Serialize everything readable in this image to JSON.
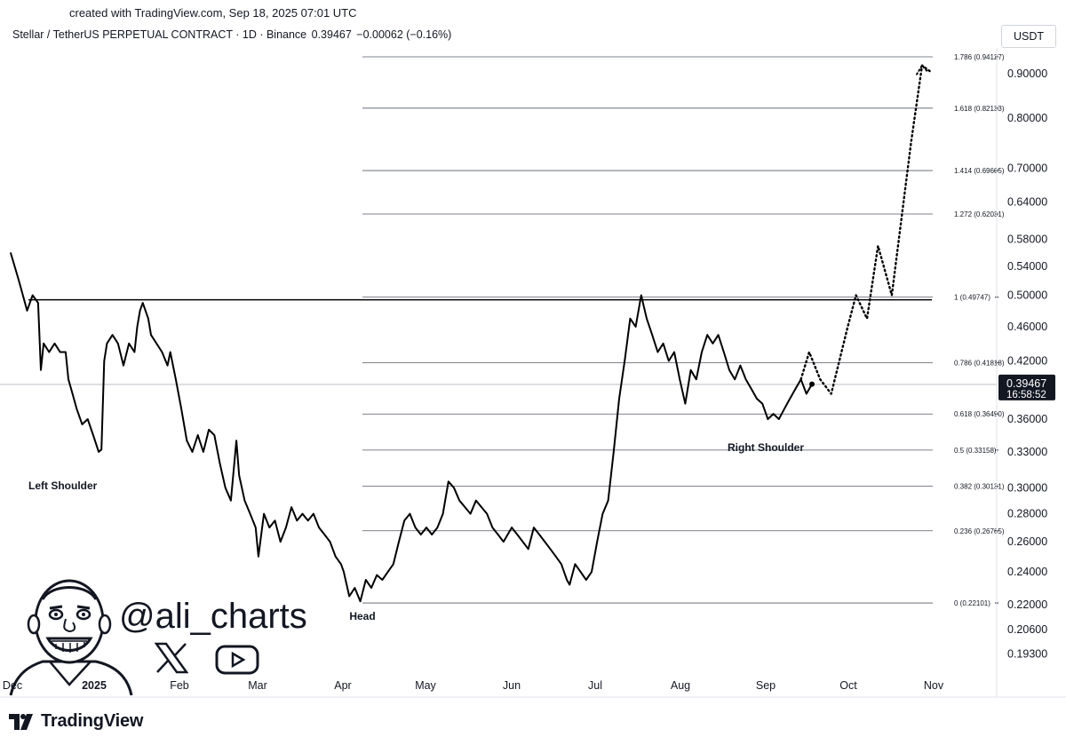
{
  "watermark": "created with TradingView.com, Sep 18, 2025 07:01 UTC",
  "header": {
    "symbol": "Stellar / TetherUS PERPETUAL CONTRACT · 1D · Binance",
    "price": "0.39467",
    "change": "−0.00062 (−0.16%)"
  },
  "currency": "USDT",
  "brand": "TradingView",
  "handle": "@ali_charts",
  "icons": {
    "social": "x-icon",
    "video": "youtube-play-icon",
    "logo": "tradingview-logo-icon",
    "avatar": "cartoon-avatar-icon"
  },
  "colors": {
    "price_line": "#000000",
    "fib_line": "#131722",
    "last_price_bg": "#131722",
    "text": "#131722"
  },
  "chart_data": {
    "type": "line",
    "scale": "log",
    "ylim": [
      0.188,
      0.95
    ],
    "y_ticks": [
      "0.90000",
      "0.80000",
      "0.70000",
      "0.64000",
      "0.58000",
      "0.54000",
      "0.50000",
      "0.46000",
      "0.42000",
      "0.36000",
      "0.33000",
      "0.30000",
      "0.28000",
      "0.26000",
      "0.24000",
      "0.22000",
      "0.20600",
      "0.19300"
    ],
    "x_ticks": [
      "Dec",
      "2025",
      "Feb",
      "Mar",
      "Apr",
      "May",
      "Jun",
      "Jul",
      "Aug",
      "Sep",
      "Oct",
      "Nov"
    ],
    "last_price": {
      "value": "0.39467",
      "countdown": "16:58:52"
    },
    "fib_levels": [
      {
        "label": "1.786 (0.94127)",
        "value": 0.94127
      },
      {
        "label": "1.618 (0.82133)",
        "value": 0.82133
      },
      {
        "label": "1.414 (0.69605)",
        "value": 0.69605
      },
      {
        "label": "1.272 (0.62031)",
        "value": 0.62031
      },
      {
        "label": "1 (0.49747)",
        "value": 0.49747
      },
      {
        "label": "0.786 (0.41818)",
        "value": 0.41818
      },
      {
        "label": "0.618 (0.36490)",
        "value": 0.3649
      },
      {
        "label": "0.5 (0.33158)",
        "value": 0.33158
      },
      {
        "label": "0.382 (0.30131)",
        "value": 0.30131
      },
      {
        "label": "0.236 (0.26765)",
        "value": 0.26765
      },
      {
        "label": "0 (0.22101)",
        "value": 0.22101
      }
    ],
    "neckline": 0.494,
    "annotations": [
      "Left Shoulder",
      "Head",
      "Right Shoulder"
    ],
    "series": [
      {
        "points": [
          [
            "Dec 1",
            0.56
          ],
          [
            "Dec 4",
            0.52
          ],
          [
            "Dec 7",
            0.48
          ],
          [
            "Dec 9",
            0.5
          ],
          [
            "Dec 11",
            0.49
          ],
          [
            "Dec 12",
            0.41
          ],
          [
            "Dec 13",
            0.44
          ],
          [
            "Dec 15",
            0.43
          ],
          [
            "Dec 17",
            0.44
          ],
          [
            "Dec 19",
            0.43
          ],
          [
            "Dec 21",
            0.43
          ],
          [
            "Dec 22",
            0.4
          ],
          [
            "Dec 23",
            0.39
          ],
          [
            "Dec 25",
            0.37
          ],
          [
            "Dec 27",
            0.355
          ],
          [
            "Dec 29",
            0.36
          ],
          [
            "Dec 31",
            0.345
          ],
          [
            "Jan 2",
            0.33
          ],
          [
            "Jan 3",
            0.332
          ],
          [
            "Jan 4",
            0.42
          ],
          [
            "Jan 5",
            0.44
          ],
          [
            "Jan 7",
            0.45
          ],
          [
            "Jan 9",
            0.44
          ],
          [
            "Jan 11",
            0.415
          ],
          [
            "Jan 13",
            0.44
          ],
          [
            "Jan 15",
            0.43
          ],
          [
            "Jan 16",
            0.46
          ],
          [
            "Jan 17",
            0.48
          ],
          [
            "Jan 18",
            0.49
          ],
          [
            "Jan 20",
            0.47
          ],
          [
            "Jan 21",
            0.45
          ],
          [
            "Jan 23",
            0.44
          ],
          [
            "Jan 25",
            0.43
          ],
          [
            "Jan 27",
            0.415
          ],
          [
            "Jan 28",
            0.43
          ],
          [
            "Jan 30",
            0.4
          ],
          [
            "Feb 1",
            0.37
          ],
          [
            "Feb 3",
            0.34
          ],
          [
            "Feb 5",
            0.33
          ],
          [
            "Feb 7",
            0.345
          ],
          [
            "Feb 9",
            0.33
          ],
          [
            "Feb 11",
            0.35
          ],
          [
            "Feb 13",
            0.345
          ],
          [
            "Feb 15",
            0.32
          ],
          [
            "Feb 17",
            0.3
          ],
          [
            "Feb 19",
            0.29
          ],
          [
            "Feb 21",
            0.34
          ],
          [
            "Feb 22",
            0.31
          ],
          [
            "Feb 24",
            0.29
          ],
          [
            "Feb 26",
            0.28
          ],
          [
            "Feb 28",
            0.27
          ],
          [
            "Mar 1",
            0.25
          ],
          [
            "Mar 3",
            0.28
          ],
          [
            "Mar 5",
            0.27
          ],
          [
            "Mar 7",
            0.275
          ],
          [
            "Mar 9",
            0.26
          ],
          [
            "Mar 11",
            0.27
          ],
          [
            "Mar 13",
            0.285
          ],
          [
            "Mar 15",
            0.275
          ],
          [
            "Mar 17",
            0.28
          ],
          [
            "Mar 19",
            0.275
          ],
          [
            "Mar 21",
            0.28
          ],
          [
            "Mar 23",
            0.27
          ],
          [
            "Mar 25",
            0.265
          ],
          [
            "Mar 27",
            0.26
          ],
          [
            "Mar 29",
            0.25
          ],
          [
            "Mar 31",
            0.245
          ],
          [
            "Apr 1",
            0.24
          ],
          [
            "Apr 3",
            0.225
          ],
          [
            "Apr 5",
            0.23
          ],
          [
            "Apr 7",
            0.222
          ],
          [
            "Apr 9",
            0.235
          ],
          [
            "Apr 11",
            0.23
          ],
          [
            "Apr 13",
            0.238
          ],
          [
            "Apr 15",
            0.235
          ],
          [
            "Apr 17",
            0.24
          ],
          [
            "Apr 19",
            0.245
          ],
          [
            "Apr 21",
            0.26
          ],
          [
            "Apr 23",
            0.275
          ],
          [
            "Apr 25",
            0.28
          ],
          [
            "Apr 27",
            0.27
          ],
          [
            "Apr 29",
            0.265
          ],
          [
            "May 1",
            0.27
          ],
          [
            "May 3",
            0.265
          ],
          [
            "May 5",
            0.27
          ],
          [
            "May 7",
            0.28
          ],
          [
            "May 9",
            0.305
          ],
          [
            "May 11",
            0.3
          ],
          [
            "May 13",
            0.29
          ],
          [
            "May 15",
            0.285
          ],
          [
            "May 17",
            0.28
          ],
          [
            "May 19",
            0.29
          ],
          [
            "May 21",
            0.285
          ],
          [
            "May 23",
            0.28
          ],
          [
            "May 25",
            0.27
          ],
          [
            "May 27",
            0.265
          ],
          [
            "May 29",
            0.26
          ],
          [
            "Jun 1",
            0.27
          ],
          [
            "Jun 3",
            0.265
          ],
          [
            "Jun 5",
            0.26
          ],
          [
            "Jun 7",
            0.255
          ],
          [
            "Jun 9",
            0.27
          ],
          [
            "Jun 11",
            0.265
          ],
          [
            "Jun 13",
            0.26
          ],
          [
            "Jun 15",
            0.255
          ],
          [
            "Jun 17",
            0.25
          ],
          [
            "Jun 19",
            0.245
          ],
          [
            "Jun 21",
            0.235
          ],
          [
            "Jun 22",
            0.232
          ],
          [
            "Jun 24",
            0.245
          ],
          [
            "Jun 26",
            0.24
          ],
          [
            "Jun 28",
            0.235
          ],
          [
            "Jun 30",
            0.24
          ],
          [
            "Jul 2",
            0.26
          ],
          [
            "Jul 4",
            0.28
          ],
          [
            "Jul 6",
            0.29
          ],
          [
            "Jul 8",
            0.33
          ],
          [
            "Jul 10",
            0.38
          ],
          [
            "Jul 12",
            0.42
          ],
          [
            "Jul 14",
            0.47
          ],
          [
            "Jul 16",
            0.46
          ],
          [
            "Jul 18",
            0.5
          ],
          [
            "Jul 20",
            0.47
          ],
          [
            "Jul 22",
            0.45
          ],
          [
            "Jul 24",
            0.43
          ],
          [
            "Jul 26",
            0.44
          ],
          [
            "Jul 28",
            0.42
          ],
          [
            "Jul 30",
            0.43
          ],
          [
            "Aug 1",
            0.4
          ],
          [
            "Aug 3",
            0.375
          ],
          [
            "Aug 5",
            0.41
          ],
          [
            "Aug 7",
            0.4
          ],
          [
            "Aug 9",
            0.43
          ],
          [
            "Aug 11",
            0.45
          ],
          [
            "Aug 13",
            0.44
          ],
          [
            "Aug 15",
            0.45
          ],
          [
            "Aug 17",
            0.43
          ],
          [
            "Aug 19",
            0.41
          ],
          [
            "Aug 21",
            0.4
          ],
          [
            "Aug 23",
            0.415
          ],
          [
            "Aug 25",
            0.4
          ],
          [
            "Aug 27",
            0.39
          ],
          [
            "Aug 29",
            0.38
          ],
          [
            "Aug 31",
            0.375
          ],
          [
            "Sep 2",
            0.36
          ],
          [
            "Sep 4",
            0.365
          ],
          [
            "Sep 6",
            0.36
          ],
          [
            "Sep 8",
            0.37
          ],
          [
            "Sep 10",
            0.38
          ],
          [
            "Sep 12",
            0.39
          ],
          [
            "Sep 14",
            0.4
          ],
          [
            "Sep 16",
            0.385
          ],
          [
            "Sep 18",
            0.395
          ]
        ]
      },
      {
        "style": "dotted",
        "points": [
          [
            "Sep 14",
            0.4
          ],
          [
            "Sep 17",
            0.43
          ],
          [
            "Sep 21",
            0.4
          ],
          [
            "Sep 25",
            0.385
          ],
          [
            "Oct 1",
            0.46
          ],
          [
            "Oct 4",
            0.5
          ],
          [
            "Oct 8",
            0.47
          ],
          [
            "Oct 12",
            0.57
          ],
          [
            "Oct 17",
            0.5
          ],
          [
            "Oct 24",
            0.75
          ],
          [
            "Oct 28",
            0.92
          ],
          [
            "Oct 31",
            0.905
          ]
        ]
      }
    ]
  }
}
